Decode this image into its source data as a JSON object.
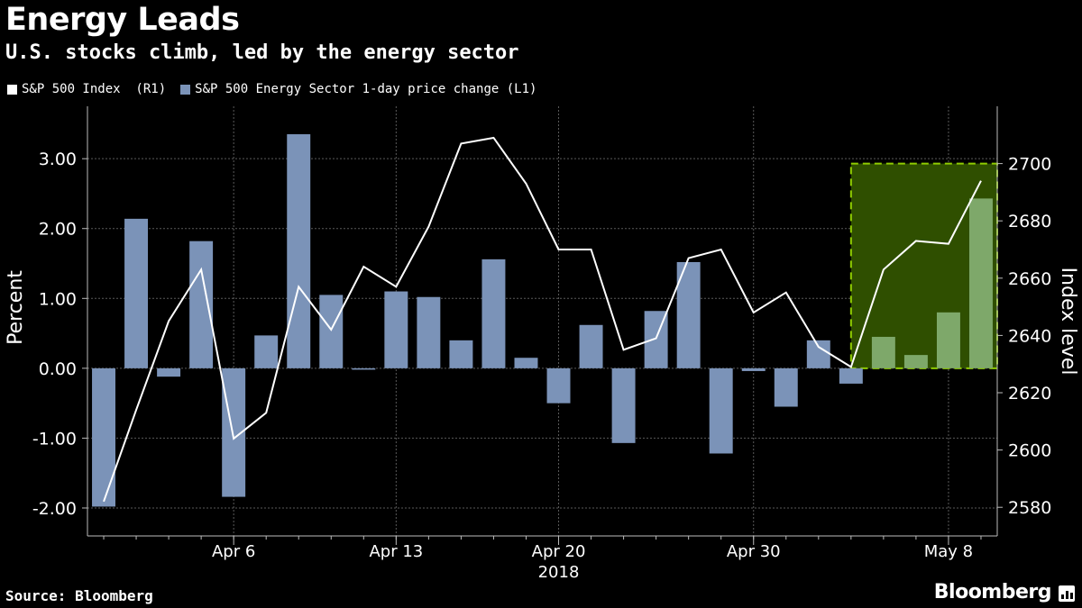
{
  "title": "Energy Leads",
  "subtitle": "U.S. stocks climb, led by the energy sector",
  "source": "Source: Bloomberg",
  "brand": "Bloomberg",
  "brand_icon": "bar-chart-icon",
  "colors": {
    "background": "#000000",
    "bars": "#7b93b8",
    "line": "#ffffff",
    "highlight_fill": "#2f4f00",
    "highlight_border": "#8fcc00",
    "grid": "#5a5a5a"
  },
  "chart_data": {
    "type": "bar",
    "legend": [
      {
        "name": "S&P 500 Index  (R1)",
        "color": "#ffffff"
      },
      {
        "name": "S&P 500 Energy Sector 1-day price change (L1)",
        "color": "#7b93b8"
      }
    ],
    "legend_placement": "top-left",
    "x": [
      "2018-04-02",
      "2018-04-03",
      "2018-04-04",
      "2018-04-05",
      "2018-04-06",
      "2018-04-09",
      "2018-04-10",
      "2018-04-11",
      "2018-04-12",
      "2018-04-13",
      "2018-04-16",
      "2018-04-17",
      "2018-04-18",
      "2018-04-19",
      "2018-04-20",
      "2018-04-23",
      "2018-04-24",
      "2018-04-25",
      "2018-04-26",
      "2018-04-27",
      "2018-04-30",
      "2018-05-01",
      "2018-05-02",
      "2018-05-03",
      "2018-05-04",
      "2018-05-07",
      "2018-05-08",
      "2018-05-09"
    ],
    "x_tick_labels": [
      "Apr 6",
      "Apr 13",
      "Apr 20",
      "Apr 30",
      "May 8"
    ],
    "x_tick_dates": [
      "2018-04-06",
      "2018-04-13",
      "2018-04-20",
      "2018-04-30",
      "2018-05-08"
    ],
    "x_year_label": "2018",
    "series": [
      {
        "name": "S&P 500 Energy Sector 1-day price change (L1)",
        "type": "bar",
        "axis": "left",
        "values": [
          -1.98,
          2.14,
          -0.12,
          1.82,
          -1.84,
          0.47,
          3.35,
          1.05,
          -0.02,
          1.1,
          1.02,
          0.4,
          1.56,
          0.15,
          -0.5,
          0.62,
          -1.07,
          0.82,
          1.52,
          -1.22,
          -0.04,
          -0.55,
          0.4,
          -0.22,
          0.45,
          0.19,
          0.8,
          2.43
        ]
      },
      {
        "name": "S&P 500 Index  (R1)",
        "type": "line",
        "axis": "right",
        "values": [
          2582,
          2614,
          2645,
          2663,
          2604,
          2613,
          2657,
          2642,
          2664,
          2657,
          2678,
          2707,
          2709,
          2693,
          2670,
          2670,
          2635,
          2639,
          2667,
          2670,
          2648,
          2655,
          2636,
          2629,
          2663,
          2673,
          2672,
          2694
        ]
      }
    ],
    "y_left": {
      "label": "Percent",
      "range": [
        -2.4,
        3.75
      ],
      "ticks": [
        -2,
        -1,
        0,
        1,
        2,
        3
      ],
      "tick_labels": [
        "-2.00",
        "-1.00",
        "0.00",
        "1.00",
        "2.00",
        "3.00"
      ]
    },
    "y_right": {
      "label": "Index level",
      "range": [
        2570,
        2720
      ],
      "ticks": [
        2580,
        2600,
        2620,
        2640,
        2660,
        2680,
        2700
      ]
    },
    "highlight": {
      "from": "2018-05-03",
      "to": "2018-05-09"
    },
    "grid": true
  }
}
